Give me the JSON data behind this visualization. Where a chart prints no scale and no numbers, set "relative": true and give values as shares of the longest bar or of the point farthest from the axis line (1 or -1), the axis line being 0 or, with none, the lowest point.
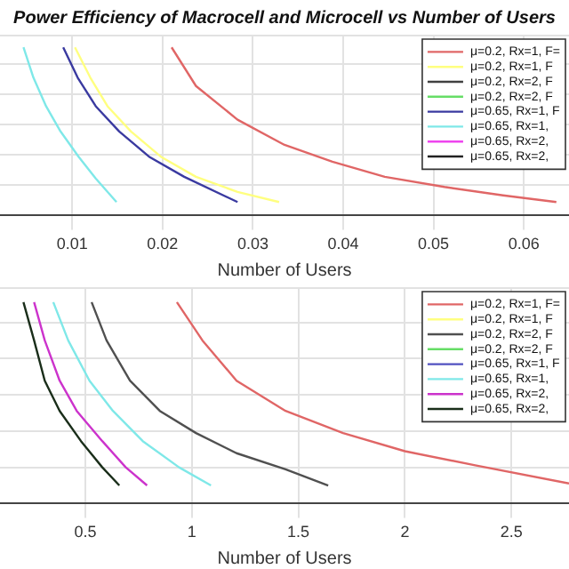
{
  "chart_data": [
    {
      "type": "line",
      "title": "Power Efficiency of Macrocell and Microcell vs Number of Users",
      "xlabel": "Number of Users",
      "relative": true,
      "xlim": [
        0.002,
        0.065
      ],
      "xticks": [
        0.01,
        0.02,
        0.03,
        0.04,
        0.05,
        0.06
      ],
      "grid": true,
      "legend": "top right",
      "marker": "none",
      "line_style": "solid",
      "series": [
        {
          "name": "μ=0.2, Rx=1, F=",
          "color": "#e06666",
          "x": [
            0.021,
            0.0237,
            0.0283,
            0.0335,
            0.0388,
            0.0446,
            0.0512,
            0.0577,
            0.0636
          ],
          "values": [
            1,
            0.77,
            0.57,
            0.42,
            0.32,
            0.23,
            0.17,
            0.12,
            0.08
          ]
        },
        {
          "name": "μ=0.2, Rx=1, F",
          "color": "#ffff80",
          "x": [
            0.0103,
            0.012,
            0.0139,
            0.0165,
            0.0198,
            0.0237,
            0.0283,
            0.0329
          ],
          "values": [
            1,
            0.82,
            0.65,
            0.5,
            0.35,
            0.23,
            0.14,
            0.08
          ]
        },
        {
          "name": "μ=0.2, Rx=2, F",
          "color": "#404040"
        },
        {
          "name": "μ=0.2, Rx=2, F",
          "color": "#66dd66"
        },
        {
          "name": "μ=0.65, Rx=1, F",
          "color": "#3a3aa0",
          "x": [
            0.009,
            0.0106,
            0.0126,
            0.0152,
            0.0185,
            0.0224,
            0.0283
          ],
          "values": [
            1,
            0.82,
            0.65,
            0.5,
            0.35,
            0.23,
            0.08
          ]
        },
        {
          "name": "μ=0.65, Rx=1,",
          "color": "#7fe8e8",
          "x": [
            0.0046,
            0.0057,
            0.0071,
            0.0087,
            0.0107,
            0.0126,
            0.0149
          ],
          "values": [
            1,
            0.82,
            0.65,
            0.5,
            0.35,
            0.22,
            0.08
          ]
        },
        {
          "name": "μ=0.65, Rx=2,",
          "color": "#ee44ee"
        },
        {
          "name": "μ=0.65, Rx=2,",
          "color": "#222222"
        }
      ]
    },
    {
      "type": "line",
      "xlabel": "Number of Users",
      "relative": true,
      "xlim": [
        0.1,
        2.77
      ],
      "xticks": [
        0.5,
        1,
        1.5,
        2,
        2.5
      ],
      "grid": true,
      "legend": "top right",
      "marker": "none",
      "line_style": "solid",
      "series": [
        {
          "name": "μ=0.2, Rx=1, F=",
          "color": "#e06666",
          "x": [
            0.93,
            1.05,
            1.21,
            1.44,
            1.71,
            2.0,
            2.33,
            2.77
          ],
          "values": [
            1,
            0.81,
            0.61,
            0.46,
            0.35,
            0.26,
            0.19,
            0.1
          ]
        },
        {
          "name": "μ=0.2, Rx=1, F",
          "color": "#ffff80"
        },
        {
          "name": "μ=0.2, Rx=2, F",
          "color": "#505050",
          "x": [
            0.53,
            0.6,
            0.71,
            0.85,
            1.02,
            1.21,
            1.44,
            1.64
          ],
          "values": [
            1,
            0.81,
            0.61,
            0.46,
            0.35,
            0.25,
            0.17,
            0.09
          ]
        },
        {
          "name": "μ=0.2, Rx=2, F",
          "color": "#66dd66"
        },
        {
          "name": "μ=0.65, Rx=1, F",
          "color": "#5050c0"
        },
        {
          "name": "μ=0.65, Rx=1,",
          "color": "#7fe8e8",
          "x": [
            0.35,
            0.42,
            0.52,
            0.63,
            0.77,
            0.94,
            1.09
          ],
          "values": [
            1,
            0.81,
            0.61,
            0.46,
            0.31,
            0.18,
            0.09
          ]
        },
        {
          "name": "μ=0.65, Rx=2,",
          "color": "#cc33cc",
          "x": [
            0.26,
            0.31,
            0.38,
            0.46,
            0.58,
            0.69,
            0.79
          ],
          "values": [
            1,
            0.81,
            0.61,
            0.46,
            0.31,
            0.18,
            0.09
          ]
        },
        {
          "name": "μ=0.65, Rx=2,",
          "color": "#1a2e1a",
          "x": [
            0.21,
            0.26,
            0.31,
            0.38,
            0.48,
            0.58,
            0.66
          ],
          "values": [
            1,
            0.81,
            0.61,
            0.46,
            0.31,
            0.18,
            0.09
          ]
        }
      ]
    }
  ]
}
